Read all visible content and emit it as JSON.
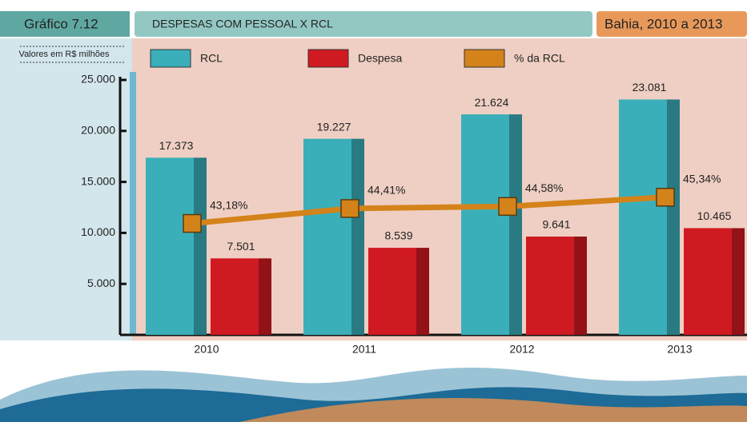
{
  "header": {
    "label": "Gráfico 7.12",
    "title": "DESPESAS COM PESSOAL X RCL",
    "region": "Bahia, 2010 a 2013"
  },
  "chart_data": {
    "type": "bar",
    "y_label": "Valores em R$ milhões",
    "categories": [
      "2010",
      "2011",
      "2012",
      "2013"
    ],
    "ylim": [
      0,
      25000
    ],
    "yticks": [
      {
        "value": 5000,
        "label": "5.000"
      },
      {
        "value": 10000,
        "label": "10.000"
      },
      {
        "value": 15000,
        "label": "15.000"
      },
      {
        "value": 20000,
        "label": "20.000"
      },
      {
        "value": 25000,
        "label": "25.000"
      }
    ],
    "y2lim": [
      34,
      55
    ],
    "series": [
      {
        "name": "RCL",
        "color": "#3aafb9",
        "values": [
          17373,
          19227,
          21624,
          23081
        ],
        "value_labels": [
          "17.373",
          "19.227",
          "21.624",
          "23.081"
        ]
      },
      {
        "name": "Despesa",
        "color": "#d01a22",
        "values": [
          7501,
          8539,
          9641,
          10465
        ],
        "value_labels": [
          "7.501",
          "8.539",
          "9.641",
          "10.465"
        ]
      },
      {
        "name": "% da RCL",
        "type": "line",
        "axis": "y2",
        "color": "#d4831a",
        "values": [
          43.18,
          44.41,
          44.58,
          45.34
        ],
        "value_labels": [
          "43,18%",
          "44,41%",
          "44,58%",
          "45,34%"
        ]
      }
    ]
  }
}
